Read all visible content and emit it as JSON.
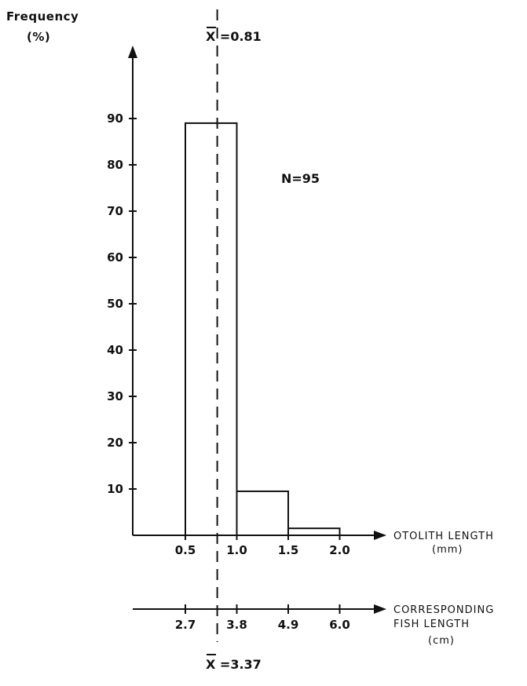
{
  "chart_data": {
    "type": "bar",
    "subtype": "histogram",
    "ylabel": "Frequency",
    "ylabel_unit": "(%)",
    "y_ticks": [
      "10",
      "20",
      "30",
      "40",
      "50",
      "60",
      "70",
      "80",
      "90"
    ],
    "ylim": [
      0,
      90
    ],
    "x_axis_label": "OTOLITH LENGTH",
    "x_axis_unit": "(mm)",
    "x_ticks": [
      "0.5",
      "1.0",
      "1.5",
      "2.0"
    ],
    "x2_axis_label_line1": "CORRESPONDING",
    "x2_axis_label_line2": "FISH LENGTH",
    "x2_axis_unit": "(cm)",
    "x2_ticks": [
      "2.7",
      "3.8",
      "4.9",
      "6.0"
    ],
    "bins": [
      {
        "start": 0.5,
        "end": 1.0,
        "value": 89
      },
      {
        "start": 1.0,
        "end": 1.5,
        "value": 9.5
      },
      {
        "start": 1.5,
        "end": 2.0,
        "value": 1.5
      }
    ],
    "mean_top_label": "X =0.81",
    "mean_top_value": 0.81,
    "mean_bottom_label": "X =3.37",
    "n_label": "N=95",
    "grid": false
  }
}
